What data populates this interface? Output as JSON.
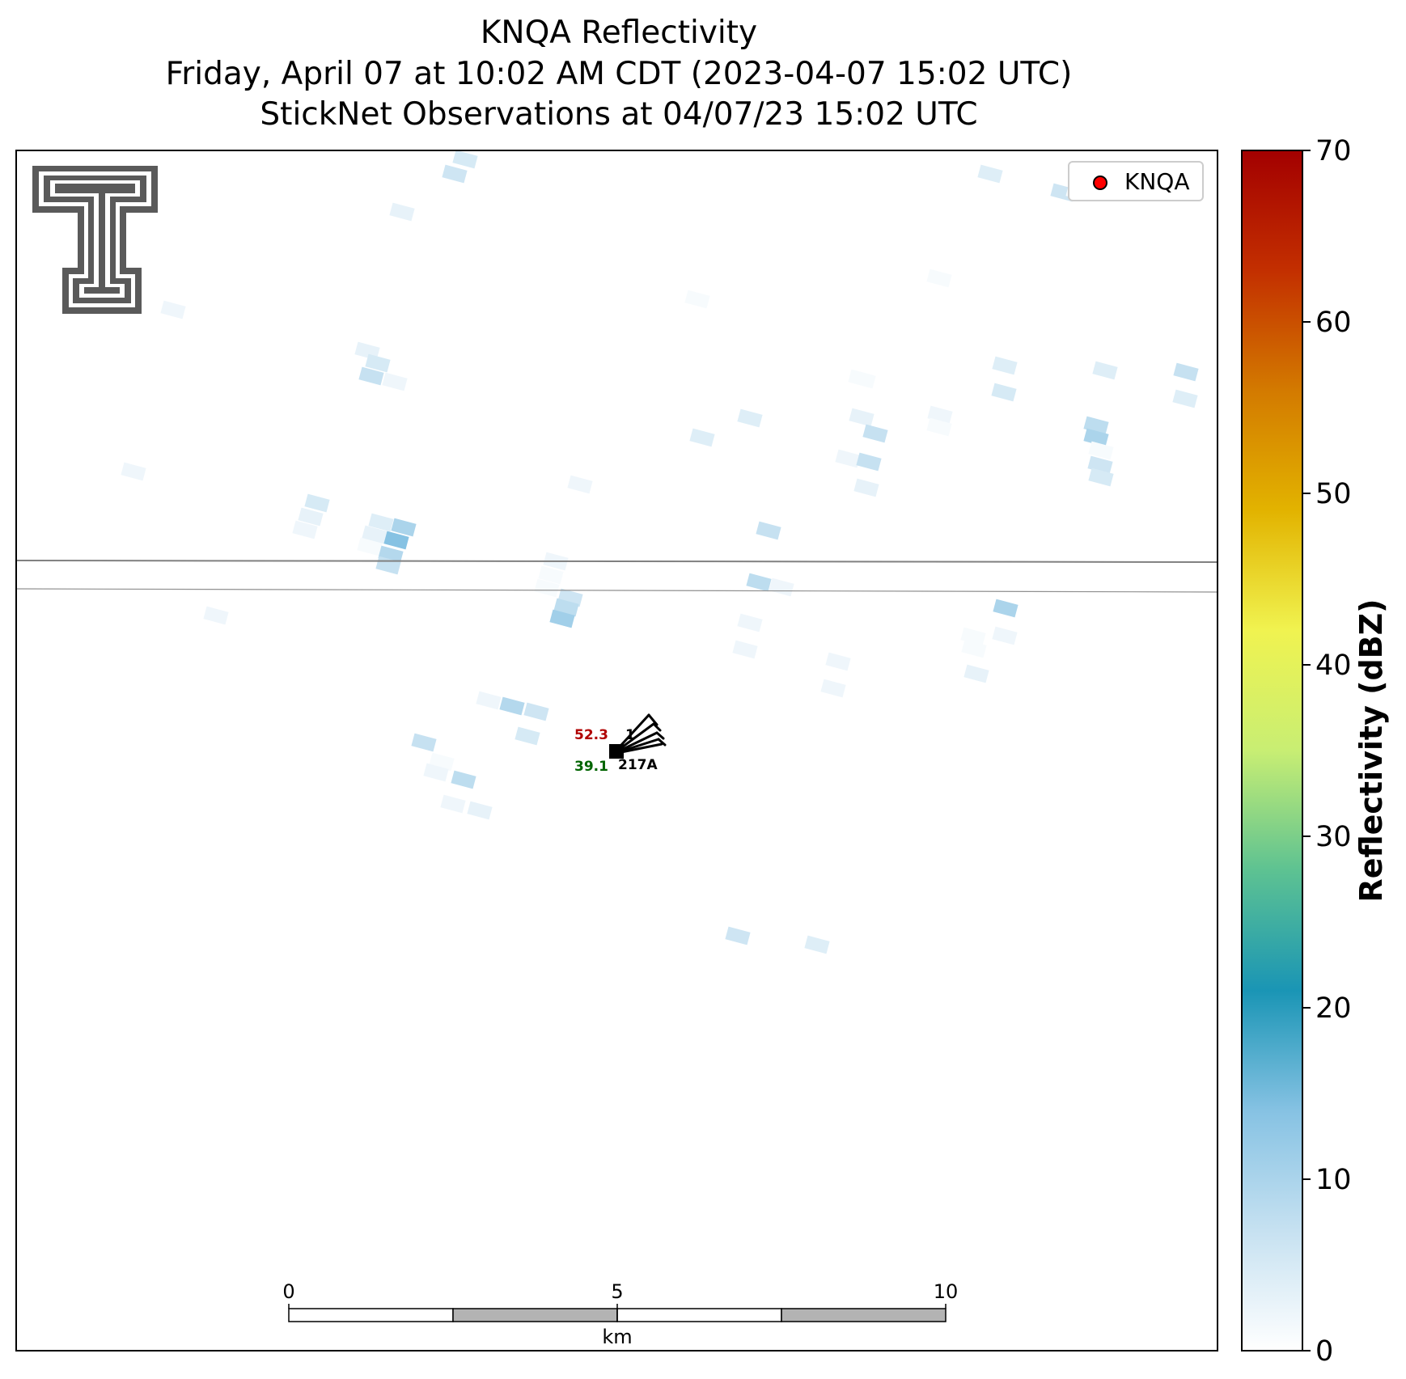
{
  "title": {
    "line1": "KNQA Reflectivity",
    "line2": "Friday, April 07 at 10:02 AM CDT (2023-04-07 15:02 UTC)",
    "line3": "StickNet Observations at 04/07/23 15:02 UTC"
  },
  "legend": {
    "label": "KNQA",
    "marker_color": "#ff0000"
  },
  "colorbar": {
    "label": "Reflectivity (dBZ)",
    "min": 0,
    "max": 70,
    "ticks": [
      "0",
      "10",
      "20",
      "30",
      "40",
      "50",
      "60",
      "70"
    ],
    "colors": [
      "#ffffff",
      "#c6e1f1",
      "#86c2e3",
      "#1a95b5",
      "#5dc292",
      "#c8ee73",
      "#f0f350",
      "#e2b300",
      "#d37a00",
      "#c32f00",
      "#a30000"
    ]
  },
  "scalebar": {
    "ticks": [
      "0",
      "5",
      "10"
    ],
    "unit": "km"
  },
  "station": {
    "id": "217A",
    "temperature": "52.3",
    "dewpoint": "39.1",
    "temp_color": "#b00000",
    "dewpoint_color": "#006400"
  },
  "reflectivity_cells": [
    [
      575,
      197,
      5
    ],
    [
      562,
      215,
      6
    ],
    [
      497,
      262,
      3
    ],
    [
      214,
      383,
      2
    ],
    [
      454,
      434,
      3
    ],
    [
      467,
      449,
      5
    ],
    [
      459,
      465,
      7
    ],
    [
      488,
      472,
      2
    ],
    [
      165,
      583,
      2
    ],
    [
      392,
      622,
      5
    ],
    [
      384,
      639,
      3
    ],
    [
      377,
      655,
      2
    ],
    [
      471,
      646,
      4
    ],
    [
      499,
      652,
      10
    ],
    [
      463,
      661,
      3
    ],
    [
      490,
      668,
      14
    ],
    [
      457,
      676,
      1
    ],
    [
      483,
      686,
      9
    ],
    [
      480,
      699,
      7
    ],
    [
      717,
      599,
      2
    ],
    [
      687,
      694,
      2
    ],
    [
      681,
      711,
      1
    ],
    [
      676,
      727,
      1
    ],
    [
      705,
      739,
      6
    ],
    [
      700,
      751,
      8
    ],
    [
      695,
      765,
      11
    ],
    [
      267,
      761,
      2
    ],
    [
      604,
      866,
      2
    ],
    [
      633,
      873,
      9
    ],
    [
      663,
      880,
      6
    ],
    [
      652,
      910,
      5
    ],
    [
      524,
      918,
      7
    ],
    [
      546,
      942,
      1
    ],
    [
      539,
      955,
      2
    ],
    [
      573,
      964,
      8
    ],
    [
      560,
      994,
      2
    ],
    [
      593,
      1002,
      3
    ],
    [
      1224,
      215,
      4
    ],
    [
      1314,
      238,
      6
    ],
    [
      1333,
      238,
      1
    ],
    [
      1161,
      344,
      1
    ],
    [
      1067,
      469,
      1
    ],
    [
      1242,
      452,
      4
    ],
    [
      1366,
      458,
      4
    ],
    [
      1466,
      460,
      7
    ],
    [
      1241,
      485,
      5
    ],
    [
      1064,
      468,
      1
    ],
    [
      1065,
      516,
      3
    ],
    [
      1162,
      513,
      2
    ],
    [
      1082,
      536,
      7
    ],
    [
      1048,
      567,
      2
    ],
    [
      1074,
      571,
      7
    ],
    [
      1071,
      603,
      3
    ],
    [
      1355,
      526,
      8
    ],
    [
      1355,
      541,
      10
    ],
    [
      1361,
      557,
      1
    ],
    [
      1360,
      575,
      6
    ],
    [
      1361,
      590,
      5
    ],
    [
      1465,
      493,
      4
    ],
    [
      927,
      517,
      4
    ],
    [
      868,
      541,
      4
    ],
    [
      950,
      656,
      7
    ],
    [
      938,
      720,
      8
    ],
    [
      966,
      726,
      2
    ],
    [
      1243,
      752,
      10
    ],
    [
      1242,
      786,
      2
    ],
    [
      1207,
      833,
      3
    ],
    [
      927,
      770,
      2
    ],
    [
      921,
      803,
      2
    ],
    [
      1036,
      818,
      2
    ],
    [
      1030,
      851,
      2
    ],
    [
      912,
      1157,
      6
    ],
    [
      1010,
      1168,
      4
    ],
    [
      1203,
      787,
      1
    ],
    [
      1204,
      802,
      1
    ],
    [
      862,
      370,
      1
    ],
    [
      1161,
      528,
      1
    ]
  ]
}
